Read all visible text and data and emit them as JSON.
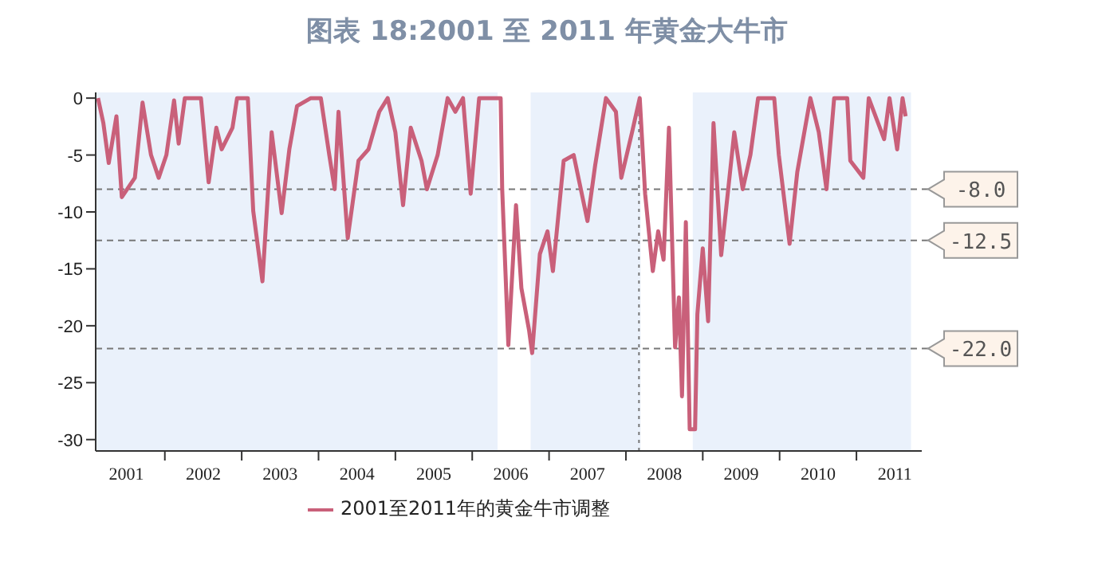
{
  "chart_data": {
    "type": "line",
    "title": "图表 18:2001 至 2011 年黄金大牛市",
    "x": [
      2001.13,
      2001.2,
      2001.27,
      2001.37,
      2001.44,
      2001.61,
      2001.71,
      2001.82,
      2001.92,
      2002.02,
      2002.12,
      2002.18,
      2002.26,
      2002.47,
      2002.57,
      2002.67,
      2002.74,
      2002.88,
      2002.94,
      2003.08,
      2003.15,
      2003.27,
      2003.39,
      2003.52,
      2003.62,
      2003.72,
      2003.9,
      2004.03,
      2004.14,
      2004.21,
      2004.26,
      2004.38,
      2004.52,
      2004.65,
      2004.79,
      2004.9,
      2005.0,
      2005.1,
      2005.2,
      2005.34,
      2005.41,
      2005.55,
      2005.68,
      2005.78,
      2005.88,
      2005.98,
      2006.09,
      2006.37,
      2006.39,
      2006.47,
      2006.57,
      2006.64,
      2006.74,
      2006.78,
      2006.88,
      2006.98,
      2007.05,
      2007.19,
      2007.32,
      2007.5,
      2007.6,
      2007.74,
      2007.87,
      2007.94,
      2008.08,
      2008.18,
      2008.25,
      2008.35,
      2008.42,
      2008.49,
      2008.56,
      2008.64,
      2008.69,
      2008.73,
      2008.78,
      2008.83,
      2008.9,
      2008.93,
      2009.0,
      2009.07,
      2009.14,
      2009.24,
      2009.41,
      2009.52,
      2009.62,
      2009.72,
      2009.93,
      2009.99,
      2010.13,
      2010.23,
      2010.4,
      2010.51,
      2010.61,
      2010.71,
      2010.88,
      2010.92,
      2011.09,
      2011.16,
      2011.36,
      2011.43,
      2011.53,
      2011.6,
      2011.64
    ],
    "series": [
      {
        "name": "2001至2011年的黄金牛市调整",
        "color": "#c9607a",
        "values": [
          0,
          -2.2,
          -5.7,
          -1.6,
          -8.7,
          -7,
          -0.4,
          -5,
          -7,
          -5,
          -0.2,
          -4,
          0,
          0,
          -7.4,
          -2.6,
          -4.5,
          -2.6,
          0,
          0,
          -9.9,
          -16.1,
          -3,
          -10.1,
          -4.5,
          -0.7,
          0,
          0,
          -5,
          -8,
          -1.2,
          -12.3,
          -5.5,
          -4.5,
          -1.2,
          0,
          -3,
          -9.4,
          -2.6,
          -5.5,
          -8,
          -5,
          0,
          -1.2,
          0,
          -8.4,
          0,
          0,
          -8,
          -21.7,
          -9.4,
          -16.7,
          -20.4,
          -22.4,
          -13.7,
          -11.7,
          -15.2,
          -5.5,
          -5,
          -10.8,
          -5.9,
          0,
          -1.2,
          -7,
          -3,
          0,
          -8.4,
          -15.2,
          -11.7,
          -14.2,
          -2.6,
          -21.9,
          -17.5,
          -26.2,
          -10.9,
          -29.1,
          -29.1,
          -19,
          -13.2,
          -19.6,
          -2.2,
          -13.8,
          -3,
          -8,
          -5,
          0,
          0,
          -5,
          -12.8,
          -6.5,
          0,
          -3,
          -8,
          0,
          0,
          -5.5,
          -7,
          0,
          -3.6,
          0,
          -4.5,
          0,
          -1.6
        ]
      }
    ],
    "xlim": [
      2001.1,
      2011.85
    ],
    "xticks": [
      {
        "value": 2001.5,
        "label": "2001"
      },
      {
        "value": 2002,
        "label": null
      },
      {
        "value": 2002.5,
        "label": "2002"
      },
      {
        "value": 2003,
        "label": null
      },
      {
        "value": 2003.5,
        "label": "2003"
      },
      {
        "value": 2004,
        "label": null
      },
      {
        "value": 2004.5,
        "label": "2004"
      },
      {
        "value": 2005,
        "label": null
      },
      {
        "value": 2005.5,
        "label": "2005"
      },
      {
        "value": 2006,
        "label": null
      },
      {
        "value": 2006.5,
        "label": "2006"
      },
      {
        "value": 2007,
        "label": null
      },
      {
        "value": 2007.5,
        "label": "2007"
      },
      {
        "value": 2008,
        "label": null
      },
      {
        "value": 2008.5,
        "label": "2008"
      },
      {
        "value": 2009,
        "label": null
      },
      {
        "value": 2009.5,
        "label": "2009"
      },
      {
        "value": 2010,
        "label": null
      },
      {
        "value": 2010.5,
        "label": "2010"
      },
      {
        "value": 2011,
        "label": null
      },
      {
        "value": 2011.5,
        "label": "2011"
      }
    ],
    "ylim": [
      -31,
      0.5
    ],
    "yticks": [
      0,
      -5,
      -10,
      -15,
      -20,
      -25,
      -30
    ],
    "bands": [
      {
        "axis": "x",
        "from": 2001.1,
        "to": 2006.33,
        "color": "#eaf1fb"
      },
      {
        "axis": "x",
        "from": 2006.76,
        "to": 2008.19,
        "color": "#eaf1fb"
      },
      {
        "axis": "x",
        "from": 2008.87,
        "to": 2011.71,
        "color": "#eaf1fb"
      }
    ],
    "ref_lines": [
      {
        "axis": "y",
        "value": -8,
        "label": "-8.0",
        "color": "#777777",
        "line_style": "dashed"
      },
      {
        "axis": "y",
        "value": -12.5,
        "label": "-12.5",
        "color": "#777777",
        "line_style": "dashed"
      },
      {
        "axis": "y",
        "value": -22,
        "label": "-22.0",
        "color": "#777777",
        "line_style": "dashed"
      },
      {
        "axis": "x",
        "value": 2008.17,
        "color": "#777777",
        "line_style": "dotted"
      }
    ],
    "grid": false,
    "legend": "bottom",
    "marker": "none",
    "line_style": "solid"
  }
}
